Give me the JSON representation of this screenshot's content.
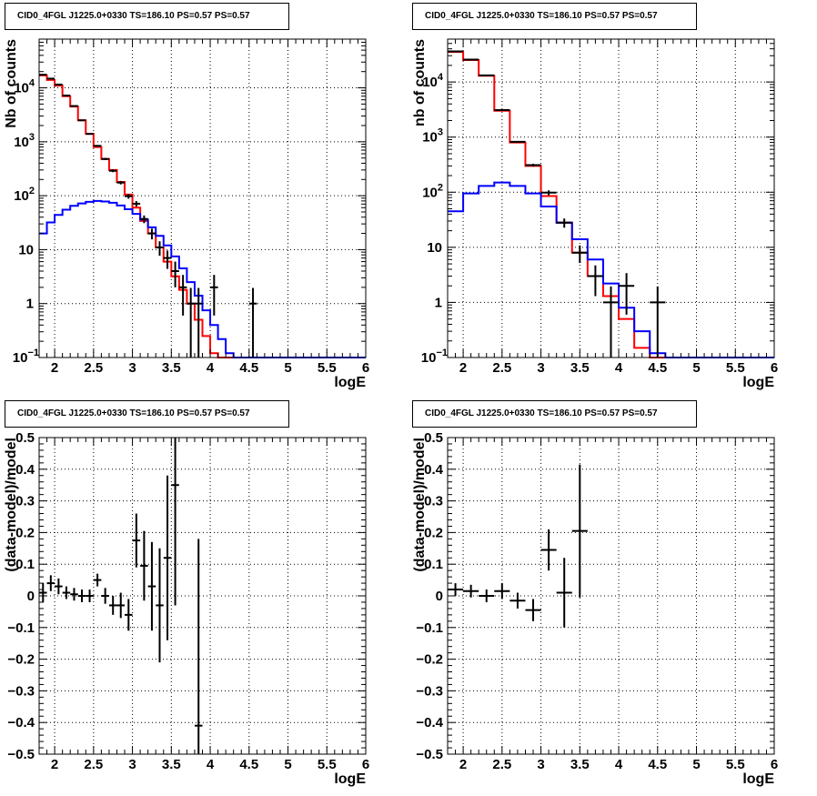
{
  "chart_data": [
    {
      "type": "line",
      "title": "CID0_4FGL J1225.0+0330 TS=186.10 PS=0.57 PS=0.57",
      "xlabel": "logE",
      "ylabel": "Nb of counts",
      "yscale": "log",
      "xlim": [
        1.8,
        6.0
      ],
      "ylim": [
        0.1,
        80000
      ],
      "grid": true,
      "xticks": [
        "2",
        "2.5",
        "3",
        "3.5",
        "4",
        "4.5",
        "5",
        "5.5",
        "6"
      ],
      "yticks": [
        "10^-1",
        "1",
        "10",
        "10^2",
        "10^3",
        "10^4"
      ],
      "bin_edges": [
        1.8,
        1.9,
        2.0,
        2.1,
        2.2,
        2.3,
        2.4,
        2.5,
        2.6,
        2.7,
        2.8,
        2.9,
        3.0,
        3.1,
        3.2,
        3.3,
        3.4,
        3.5,
        3.6,
        3.7,
        3.8,
        3.9,
        4.0,
        4.1,
        4.2,
        4.3,
        4.4,
        4.5,
        4.6,
        4.7,
        4.8,
        4.9,
        5.0,
        5.1,
        5.2,
        5.3,
        5.4,
        5.5,
        5.6,
        5.7,
        5.8,
        5.9,
        6.0
      ],
      "series": [
        {
          "color": "#ff0000",
          "values": [
            17000,
            14000,
            11000,
            7000,
            4500,
            2500,
            1400,
            800,
            480,
            300,
            180,
            105,
            60,
            34,
            20,
            11,
            6,
            3.2,
            1.8,
            1.0,
            0.5,
            0.25,
            0.12,
            0.1,
            0.1,
            0.1,
            0.1,
            0.1,
            0.1,
            0.1,
            0.1,
            0.1,
            0.1,
            0.1,
            0.1,
            0.1,
            0.1,
            0.1,
            0.1,
            0.1,
            0.1,
            0.1
          ]
        },
        {
          "color": "#0000ff",
          "values": [
            20,
            32,
            44,
            55,
            65,
            72,
            77,
            80,
            78,
            74,
            66,
            56,
            46,
            36,
            26,
            18,
            12,
            7.5,
            4.5,
            2.5,
            1.4,
            0.75,
            0.4,
            0.22,
            0.12,
            0.1,
            0.1,
            0.1,
            0.1,
            0.1,
            0.1,
            0.1,
            0.1,
            0.1,
            0.1,
            0.1,
            0.1,
            0.1,
            0.1,
            0.1,
            0.1,
            0.1
          ]
        }
      ],
      "data_points": [
        {
          "x": 1.85,
          "y": 17500,
          "yerr": 130
        },
        {
          "x": 1.95,
          "y": 14800,
          "yerr": 120
        },
        {
          "x": 2.05,
          "y": 11500,
          "yerr": 110
        },
        {
          "x": 2.15,
          "y": 7200,
          "yerr": 85
        },
        {
          "x": 2.25,
          "y": 4600,
          "yerr": 68
        },
        {
          "x": 2.35,
          "y": 2500,
          "yerr": 50
        },
        {
          "x": 2.45,
          "y": 1400,
          "yerr": 37
        },
        {
          "x": 2.55,
          "y": 840,
          "yerr": 29
        },
        {
          "x": 2.65,
          "y": 480,
          "yerr": 22
        },
        {
          "x": 2.75,
          "y": 290,
          "yerr": 17
        },
        {
          "x": 2.85,
          "y": 175,
          "yerr": 13
        },
        {
          "x": 2.95,
          "y": 98,
          "yerr": 10
        },
        {
          "x": 3.05,
          "y": 71,
          "yerr": 8.4
        },
        {
          "x": 3.15,
          "y": 37,
          "yerr": 6
        },
        {
          "x": 3.25,
          "y": 20,
          "yerr": 4.5
        },
        {
          "x": 3.35,
          "y": 11,
          "yerr": 3.3
        },
        {
          "x": 3.45,
          "y": 7,
          "yerr": 2.6
        },
        {
          "x": 3.55,
          "y": 4,
          "yerr": 2
        },
        {
          "x": 3.65,
          "y": 2,
          "yerr": 1.4
        },
        {
          "x": 3.75,
          "y": 1,
          "yerr": 0.95
        },
        {
          "x": 3.85,
          "y": 1,
          "yerr": 0.95
        },
        {
          "x": 4.05,
          "y": 2,
          "yerr": 1.4
        },
        {
          "x": 4.55,
          "y": 1,
          "yerr": 0.95
        }
      ]
    },
    {
      "type": "line",
      "title": "CID0_4FGL J1225.0+0330 TS=186.10 PS=0.57 PS=0.57",
      "xlabel": "logE",
      "ylabel": "nb of counts",
      "yscale": "log",
      "xlim": [
        1.8,
        6.0
      ],
      "ylim": [
        0.1,
        60000
      ],
      "grid": true,
      "xticks": [
        "2",
        "2.5",
        "3",
        "3.5",
        "4",
        "4.5",
        "5",
        "5.5",
        "6"
      ],
      "yticks": [
        "10^-1",
        "1",
        "10",
        "10^2",
        "10^3",
        "10^4"
      ],
      "bin_edges": [
        1.8,
        2.0,
        2.2,
        2.4,
        2.6,
        2.8,
        3.0,
        3.2,
        3.4,
        3.6,
        3.8,
        4.0,
        4.2,
        4.4,
        4.6,
        4.8,
        5.0,
        5.2,
        5.4,
        5.6,
        5.8,
        6.0
      ],
      "series": [
        {
          "color": "#ff0000",
          "values": [
            35000,
            25000,
            13000,
            3000,
            800,
            300,
            85,
            28,
            8,
            3,
            1.3,
            0.5,
            0.15,
            0.1,
            0.1,
            0.1,
            0.1,
            0.1,
            0.1,
            0.1,
            0.1
          ]
        },
        {
          "color": "#0000ff",
          "values": [
            45,
            95,
            130,
            150,
            130,
            95,
            55,
            28,
            14,
            6,
            2.2,
            0.8,
            0.3,
            0.12,
            0.1,
            0.1,
            0.1,
            0.1,
            0.1,
            0.1,
            0.1
          ]
        }
      ],
      "data_points": [
        {
          "x": 1.9,
          "y": 36000,
          "yerr": 190
        },
        {
          "x": 2.1,
          "y": 25500,
          "yerr": 160
        },
        {
          "x": 2.3,
          "y": 13200,
          "yerr": 115
        },
        {
          "x": 2.5,
          "y": 3100,
          "yerr": 56
        },
        {
          "x": 2.7,
          "y": 820,
          "yerr": 29
        },
        {
          "x": 2.9,
          "y": 310,
          "yerr": 18
        },
        {
          "x": 3.1,
          "y": 98,
          "yerr": 10
        },
        {
          "x": 3.3,
          "y": 28,
          "yerr": 5.3
        },
        {
          "x": 3.5,
          "y": 8,
          "yerr": 2.8
        },
        {
          "x": 3.7,
          "y": 3,
          "yerr": 1.7
        },
        {
          "x": 3.9,
          "y": 1,
          "yerr": 0.95
        },
        {
          "x": 4.1,
          "y": 2,
          "yerr": 1.4
        },
        {
          "x": 4.5,
          "y": 1,
          "yerr": 0.95
        }
      ]
    },
    {
      "type": "scatter",
      "title": "CID0_4FGL J1225.0+0330 TS=186.10 PS=0.57 PS=0.57",
      "xlabel": "logE",
      "ylabel": "(data-model)/model",
      "xlim": [
        1.8,
        6.0
      ],
      "ylim": [
        -0.5,
        0.5
      ],
      "grid": true,
      "xticks": [
        "2",
        "2.5",
        "3",
        "3.5",
        "4",
        "4.5",
        "5",
        "5.5",
        "6"
      ],
      "yticks": [
        "−0.5",
        "−0.4",
        "−0.3",
        "−0.2",
        "−0.1",
        "0",
        "0.1",
        "0.2",
        "0.3",
        "0.4",
        "0.5"
      ],
      "xhalf": 0.05,
      "data_points": [
        {
          "x": 1.85,
          "y": 0.01,
          "yerr": 0.03
        },
        {
          "x": 1.95,
          "y": 0.04,
          "yerr": 0.025
        },
        {
          "x": 2.05,
          "y": 0.03,
          "yerr": 0.025
        },
        {
          "x": 2.15,
          "y": 0.01,
          "yerr": 0.02
        },
        {
          "x": 2.25,
          "y": 0.005,
          "yerr": 0.02
        },
        {
          "x": 2.35,
          "y": 0.0,
          "yerr": 0.02
        },
        {
          "x": 2.45,
          "y": 0.0,
          "yerr": 0.02
        },
        {
          "x": 2.55,
          "y": 0.05,
          "yerr": 0.02
        },
        {
          "x": 2.65,
          "y": 0.0,
          "yerr": 0.025
        },
        {
          "x": 2.75,
          "y": -0.03,
          "yerr": 0.03
        },
        {
          "x": 2.85,
          "y": -0.03,
          "yerr": 0.04
        },
        {
          "x": 2.95,
          "y": -0.06,
          "yerr": 0.05
        },
        {
          "x": 3.05,
          "y": 0.175,
          "yerr": 0.085
        },
        {
          "x": 3.15,
          "y": 0.095,
          "yerr": 0.11
        },
        {
          "x": 3.25,
          "y": 0.03,
          "yerr": 0.14
        },
        {
          "x": 3.35,
          "y": -0.03,
          "yerr": 0.18
        },
        {
          "x": 3.45,
          "y": 0.12,
          "yerr": 0.26
        },
        {
          "x": 3.55,
          "y": 0.35,
          "yerr": 0.38
        },
        {
          "x": 3.85,
          "y": -0.41,
          "yerr": 0.59
        }
      ]
    },
    {
      "type": "scatter",
      "title": "CID0_4FGL J1225.0+0330 TS=186.10 PS=0.57 PS=0.57",
      "xlabel": "logE",
      "ylabel": "(data-model)/model",
      "xlim": [
        1.8,
        6.0
      ],
      "ylim": [
        -0.5,
        0.5
      ],
      "grid": true,
      "xticks": [
        "2",
        "2.5",
        "3",
        "3.5",
        "4",
        "4.5",
        "5",
        "5.5",
        "6"
      ],
      "yticks": [
        "−0.5",
        "−0.4",
        "−0.3",
        "−0.2",
        "−0.1",
        "0",
        "0.1",
        "0.2",
        "0.3",
        "0.4",
        "0.5"
      ],
      "xhalf": 0.1,
      "data_points": [
        {
          "x": 1.9,
          "y": 0.02,
          "yerr": 0.02
        },
        {
          "x": 2.1,
          "y": 0.015,
          "yerr": 0.02
        },
        {
          "x": 2.3,
          "y": 0.0,
          "yerr": 0.02
        },
        {
          "x": 2.5,
          "y": 0.015,
          "yerr": 0.025
        },
        {
          "x": 2.7,
          "y": -0.015,
          "yerr": 0.025
        },
        {
          "x": 2.9,
          "y": -0.045,
          "yerr": 0.035
        },
        {
          "x": 3.1,
          "y": 0.145,
          "yerr": 0.065
        },
        {
          "x": 3.3,
          "y": 0.01,
          "yerr": 0.11
        },
        {
          "x": 3.5,
          "y": 0.205,
          "yerr": 0.21
        }
      ]
    }
  ]
}
